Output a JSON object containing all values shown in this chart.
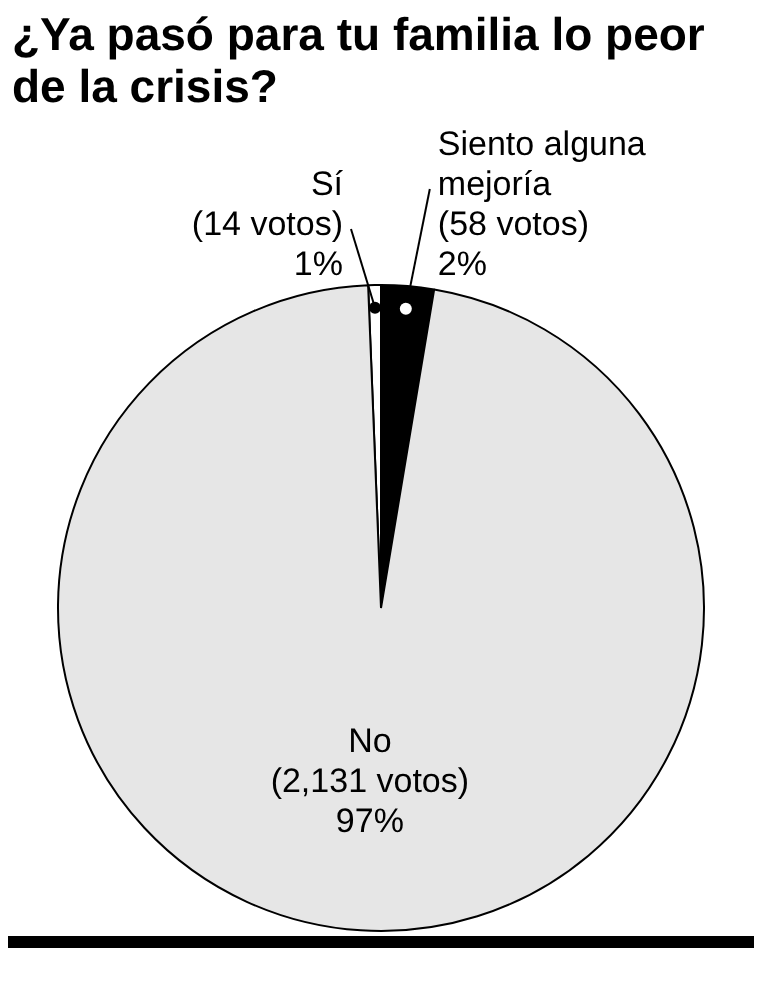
{
  "chart_data": {
    "type": "pie",
    "title": "¿Ya pasó para tu familia lo peor de la crisis?",
    "categories": [
      "Sí",
      "Siento alguna mejoría",
      "No"
    ],
    "values": [
      14,
      58,
      2131
    ],
    "colors": [
      "#ffffff",
      "#000000",
      "#e6e6e6"
    ],
    "value_labels": [
      "(14 votos)\n1%",
      "(58 votos)\n2%",
      "(2,131 votos)\n97%"
    ]
  }
}
